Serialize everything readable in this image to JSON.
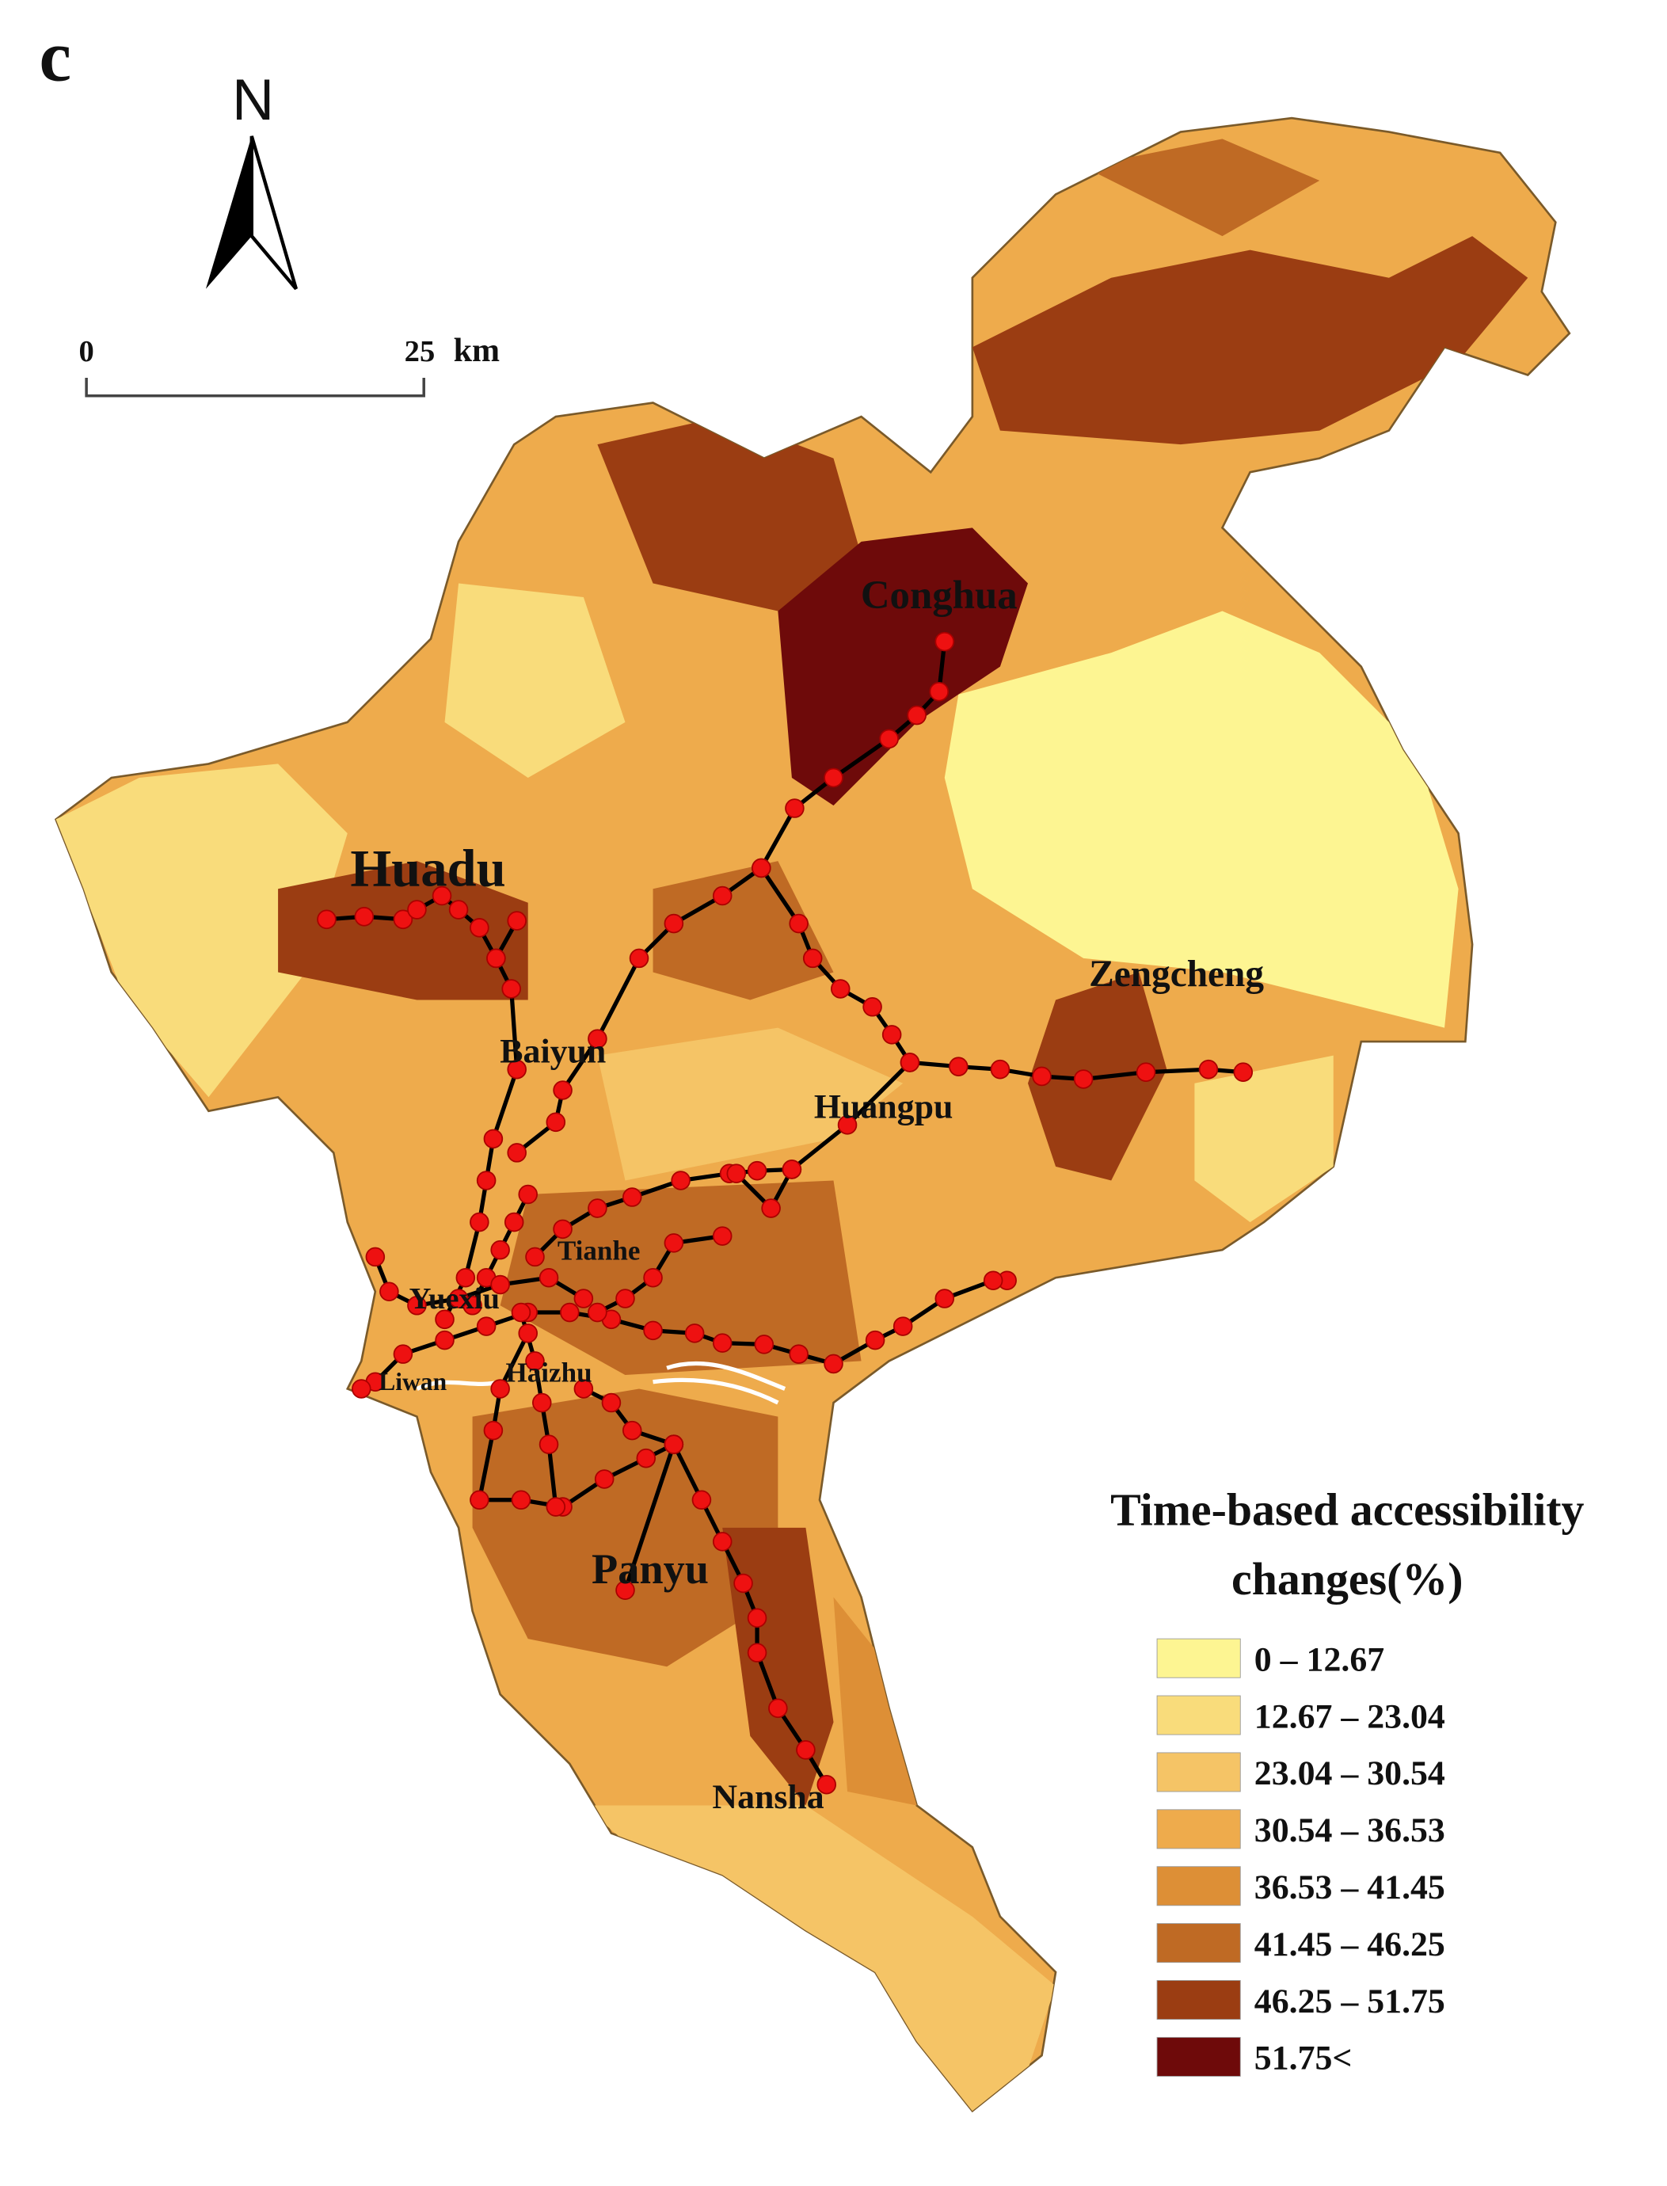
{
  "panel_label": "c",
  "north_label": "N",
  "scale_bar": {
    "start": "0",
    "end": "25",
    "unit": "km"
  },
  "districts": [
    "Huadu",
    "Conghua",
    "Zengcheng",
    "Baiyun",
    "Huangpu",
    "Tianhe",
    "Yuexiu",
    "Liwan",
    "Haizhu",
    "Panyu",
    "Nansha"
  ],
  "legend": {
    "title_lines": [
      "Time-based accessibility",
      "changes(%)"
    ],
    "items": [
      {
        "label": "0 – 12.67",
        "color": "#fdf592"
      },
      {
        "label": "12.67 – 23.04",
        "color": "#f9dc7b"
      },
      {
        "label": "23.04 – 30.54",
        "color": "#f5c466"
      },
      {
        "label": "30.54 – 36.53",
        "color": "#eeab4c"
      },
      {
        "label": "36.53 – 41.45",
        "color": "#dd8f36"
      },
      {
        "label": "41.45 – 46.25",
        "color": "#bf6a24"
      },
      {
        "label": "46.25 – 51.75",
        "color": "#9b3d12"
      },
      {
        "label": "51.75<",
        "color": "#6e0a0a"
      }
    ]
  }
}
